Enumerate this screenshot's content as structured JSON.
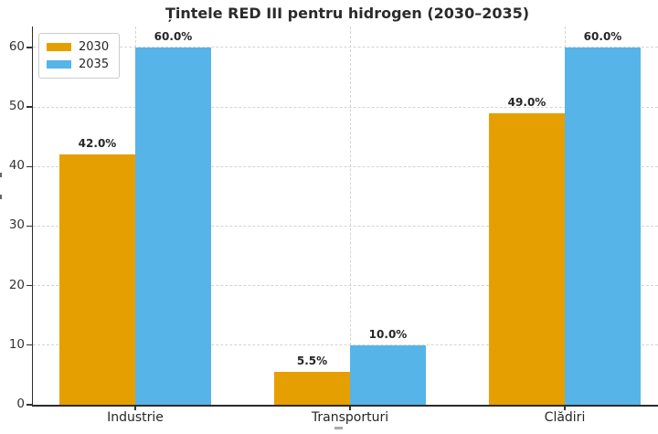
{
  "chart_data": {
    "type": "bar",
    "title": "Țintele RED III pentru hidrogen (2030–2035)",
    "categories": [
      "Industrie",
      "Transporturi",
      "Clădiri"
    ],
    "series": [
      {
        "name": "2030",
        "color": "#E69F00",
        "values": [
          42.0,
          5.5,
          49.0
        ],
        "value_labels": [
          "42.0%",
          "5.5%",
          "49.0%"
        ]
      },
      {
        "name": "2035",
        "color": "#56B4E9",
        "values": [
          60.0,
          10.0,
          60.0
        ],
        "value_labels": [
          "60.0%",
          "10.0%",
          "60.0%"
        ]
      }
    ],
    "y_ticks": [
      0,
      10,
      20,
      30,
      40,
      50,
      60
    ],
    "ylim": [
      0,
      63.5
    ],
    "grid": {
      "axes": "both",
      "line_style": "dashed",
      "color": "#d4d4d4"
    },
    "legend": {
      "position": "upper left"
    },
    "style": {
      "background": "#ffffff",
      "title_color": "#2b2b2b",
      "text_color": "#262626",
      "tick_color": "#333333",
      "spine_color": "#2b2b2b"
    }
  }
}
